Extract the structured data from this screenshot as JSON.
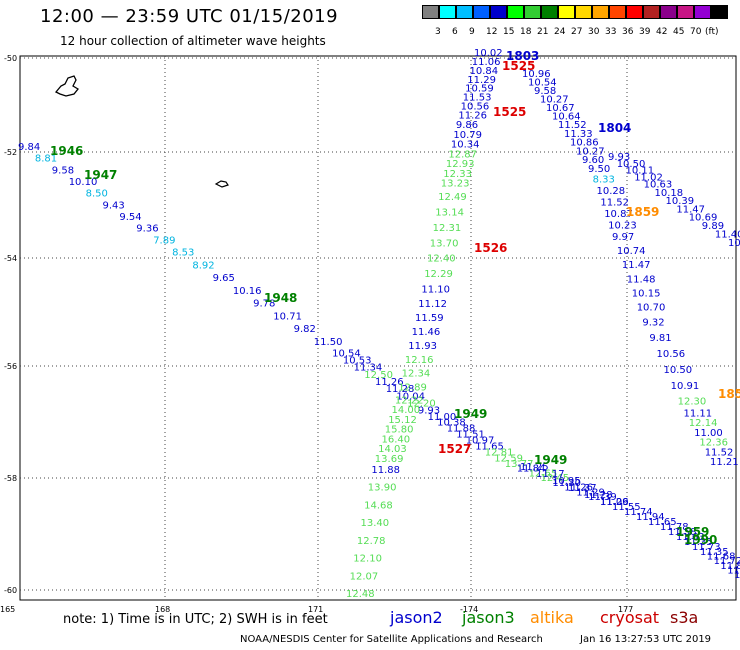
{
  "title": "12:00 — 23:59 UTC 01/15/2019",
  "subtitle": "12 hour collection of altimeter wave heights",
  "scale": {
    "colors": [
      "#808080",
      "#00ffff",
      "#00bfff",
      "#0060ff",
      "#0000cd",
      "#00ff00",
      "#32cd32",
      "#008000",
      "#ffff00",
      "#ffd700",
      "#ffa500",
      "#ff4500",
      "#ff0000",
      "#b22222",
      "#8b008b",
      "#c71585",
      "#9400d3",
      "#000000"
    ],
    "labels": [
      "3",
      "6",
      "9",
      "12",
      "15",
      "18",
      "21",
      "24",
      "27",
      "30",
      "33",
      "36",
      "39",
      "42",
      "45",
      "70",
      "(ft)"
    ]
  },
  "axes": {
    "lon_labels": [
      "165",
      "168",
      "171",
      "-174",
      "177"
    ],
    "lat_labels": [
      "-50",
      "-52",
      "-54",
      "-56",
      "-58",
      "-60"
    ]
  },
  "note": "note: 1) Time is in UTC; 2) SWH is in feet",
  "satellites": [
    {
      "name": "jason2",
      "color": "#0000cd"
    },
    {
      "name": "jason3",
      "color": "#008000"
    },
    {
      "name": "altika",
      "color": "#ff8c00"
    },
    {
      "name": "cryosat",
      "color": "#cc0000"
    },
    {
      "name": "s3a",
      "color": "#8b0000"
    }
  ],
  "footer_left": "NOAA/NESDIS Center for Satellite Applications and Research",
  "footer_right": "Jan 16 13:27:53 UTC 2019",
  "times": {
    "t1946": "1946",
    "t1947": "1947",
    "t1948": "1948",
    "t1949a": "1949",
    "t1949b": "1949",
    "t1803": "1803",
    "t1525a": "1525",
    "t1525b": "1525",
    "t1526": "1526",
    "t1527": "1527",
    "t1804": "1804",
    "t1859": "1859",
    "t185x": "185",
    "t1959": "1959",
    "t1990": "1990"
  },
  "tracks": {
    "west": [
      "9.84",
      "8.81",
      "9.58",
      "10.10",
      "8.50",
      "9.43",
      "9.54",
      "9.36",
      "7.89",
      "8.53",
      "8.92",
      "9.65",
      "10.16",
      "9.78",
      "10.71",
      "9.82",
      "11.50",
      "10.54",
      "10.53",
      "11.34",
      "12.50",
      "11.26",
      "11.28",
      "10.04",
      "12.20",
      "9.93",
      "11.00",
      "10.38",
      "11.88",
      "11.51",
      "10.97",
      "11.65",
      "12.81",
      "12.59",
      "13.77",
      "11.84",
      "12.65",
      "12.45",
      "11.30",
      "11.26",
      "11.29",
      "11.39",
      "11.26"
    ],
    "mid_up": [
      "12.48",
      "12.07",
      "12.10",
      "12.78",
      "13.40",
      "14.68",
      "13.90",
      "11.88",
      "13.69",
      "14.03",
      "16.40",
      "15.80",
      "15.12",
      "14.00",
      "12.22",
      "12.89",
      "12.34",
      "12.16",
      "11.93",
      "11.46",
      "11.59",
      "11.12",
      "11.10",
      "12.29",
      "12.40",
      "13.70",
      "12.31",
      "13.14",
      "12.49",
      "13.23",
      "12.33",
      "12.93",
      "12.87",
      "10.34",
      "10.79",
      "9.86",
      "11.26",
      "10.56",
      "11.53",
      "10.59",
      "11.29",
      "10.84",
      "11.06",
      "10.02"
    ],
    "east_down": [
      "10.96",
      "10.54",
      "9.58",
      "10.27",
      "10.67",
      "10.64",
      "11.52",
      "11.33",
      "10.86",
      "10.27",
      "9.60",
      "9.50",
      "8.33",
      "10.28",
      "11.52",
      "10.87",
      "10.23",
      "9.97",
      "10.74",
      "11.47",
      "11.48",
      "10.15",
      "10.70",
      "9.32",
      "9.81",
      "10.56",
      "10.50",
      "10.91",
      "12.30",
      "11.11",
      "12.14",
      "11.00",
      "12.36",
      "11.52",
      "11.21"
    ],
    "far_east": [
      "9.93",
      "10.50",
      "10.11",
      "11.02",
      "10.63",
      "10.18",
      "10.39",
      "11.47",
      "10.69",
      "9.89",
      "11.40",
      "10"
    ],
    "low_tail": [
      "11.25",
      "11.17",
      "10.95",
      "11.37",
      "11.28",
      "11.09",
      "11.55",
      "11.74",
      "11.94",
      "11.65",
      "11.78",
      "11.58",
      "11.63",
      "11.35",
      "11.73",
      "11.35",
      "11.68",
      "11.72",
      "11.86",
      "11.52",
      "11.14"
    ]
  }
}
